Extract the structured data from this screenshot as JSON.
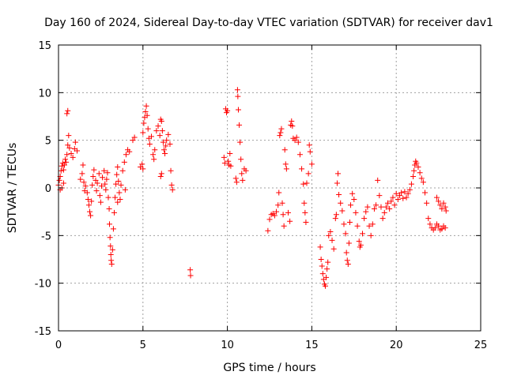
{
  "chart_data": {
    "type": "scatter",
    "title": "Day 160 of 2024, Sidereal Day-to-day VTEC variation (SDTVAR) for receiver dav1",
    "xlabel": "GPS time / hours",
    "ylabel": "SDTVAR / TECUs",
    "xlim": [
      0,
      25
    ],
    "ylim": [
      -15,
      15
    ],
    "x_ticks": [
      0,
      5,
      10,
      15,
      20,
      25
    ],
    "y_ticks": [
      -15,
      -10,
      -5,
      0,
      5,
      10,
      15
    ],
    "x_tick_labels": [
      "0",
      "5",
      "10",
      "15",
      "20",
      "25"
    ],
    "y_tick_labels": [
      "-15",
      "-10",
      "-5",
      "0",
      "5",
      "10",
      "15"
    ],
    "grid": true,
    "marker": "+",
    "marker_color": "#ff0000",
    "series": [
      {
        "name": "SDTVAR",
        "points": [
          [
            0.0,
            0.3
          ],
          [
            0.05,
            0.8
          ],
          [
            0.1,
            1.2
          ],
          [
            0.15,
            1.8
          ],
          [
            0.2,
            2.3
          ],
          [
            0.25,
            2.6
          ],
          [
            0.3,
            1.9
          ],
          [
            0.35,
            2.4
          ],
          [
            0.4,
            3.0
          ],
          [
            0.45,
            2.7
          ],
          [
            0.5,
            3.5
          ],
          [
            0.55,
            4.5
          ],
          [
            0.5,
            7.8
          ],
          [
            0.55,
            8.1
          ],
          [
            0.6,
            5.5
          ],
          [
            0.65,
            4.2
          ],
          [
            0.75,
            3.6
          ],
          [
            0.85,
            3.2
          ],
          [
            0.95,
            4.1
          ],
          [
            1.0,
            4.8
          ],
          [
            1.1,
            3.9
          ],
          [
            0.1,
            -0.2
          ],
          [
            0.2,
            0.0
          ],
          [
            0.3,
            0.5
          ],
          [
            1.3,
            0.9
          ],
          [
            1.4,
            1.5
          ],
          [
            1.45,
            2.4
          ],
          [
            1.5,
            0.6
          ],
          [
            1.55,
            -0.3
          ],
          [
            1.6,
            0.2
          ],
          [
            1.7,
            -0.5
          ],
          [
            1.75,
            -1.2
          ],
          [
            1.8,
            -1.8
          ],
          [
            1.85,
            -2.5
          ],
          [
            1.9,
            -2.9
          ],
          [
            1.95,
            -1.4
          ],
          [
            2.0,
            0.3
          ],
          [
            2.05,
            1.2
          ],
          [
            2.1,
            1.9
          ],
          [
            2.2,
            0.8
          ],
          [
            2.25,
            -0.3
          ],
          [
            2.3,
            0.5
          ],
          [
            2.4,
            1.5
          ],
          [
            2.45,
            -0.8
          ],
          [
            2.5,
            -1.5
          ],
          [
            2.55,
            0.2
          ],
          [
            2.6,
            1.1
          ],
          [
            2.7,
            1.8
          ],
          [
            2.75,
            0.4
          ],
          [
            2.8,
            -0.2
          ],
          [
            2.85,
            0.9
          ],
          [
            2.9,
            1.6
          ],
          [
            2.95,
            -1.0
          ],
          [
            3.0,
            -2.2
          ],
          [
            3.02,
            -3.8
          ],
          [
            3.05,
            -5.2
          ],
          [
            3.08,
            -6.1
          ],
          [
            3.1,
            -7.0
          ],
          [
            3.12,
            -7.6
          ],
          [
            3.15,
            -8.0
          ],
          [
            3.2,
            -6.5
          ],
          [
            3.25,
            -4.3
          ],
          [
            3.3,
            -2.6
          ],
          [
            3.35,
            -1.0
          ],
          [
            3.4,
            0.4
          ],
          [
            3.45,
            1.4
          ],
          [
            3.5,
            2.2
          ],
          [
            3.55,
            0.7
          ],
          [
            3.6,
            -0.5
          ],
          [
            3.65,
            -1.2
          ],
          [
            3.7,
            0.3
          ],
          [
            3.8,
            1.8
          ],
          [
            3.9,
            2.7
          ],
          [
            4.0,
            3.5
          ],
          [
            4.1,
            4.0
          ],
          [
            4.2,
            3.8
          ],
          [
            3.95,
            -0.2
          ],
          [
            3.5,
            -1.5
          ],
          [
            4.4,
            5.0
          ],
          [
            4.5,
            5.3
          ],
          [
            4.85,
            2.2
          ],
          [
            4.95,
            2.5
          ],
          [
            5.0,
            5.8
          ],
          [
            5.05,
            6.8
          ],
          [
            5.1,
            7.4
          ],
          [
            5.15,
            8.0
          ],
          [
            5.2,
            8.6
          ],
          [
            5.25,
            7.6
          ],
          [
            5.3,
            6.2
          ],
          [
            5.35,
            5.2
          ],
          [
            5.4,
            4.6
          ],
          [
            5.5,
            5.4
          ],
          [
            5.6,
            3.5
          ],
          [
            5.65,
            3.0
          ],
          [
            5.7,
            4.0
          ],
          [
            5.8,
            6.0
          ],
          [
            5.9,
            6.5
          ],
          [
            6.0,
            5.5
          ],
          [
            6.05,
            7.2
          ],
          [
            6.1,
            7.0
          ],
          [
            6.15,
            6.0
          ],
          [
            6.2,
            4.8
          ],
          [
            6.25,
            4.0
          ],
          [
            6.3,
            3.6
          ],
          [
            6.35,
            4.4
          ],
          [
            6.4,
            5.0
          ],
          [
            6.5,
            5.6
          ],
          [
            6.6,
            4.6
          ],
          [
            6.65,
            1.8
          ],
          [
            6.7,
            0.3
          ],
          [
            6.75,
            -0.2
          ],
          [
            6.1,
            1.5
          ],
          [
            6.05,
            1.2
          ],
          [
            5.0,
            2.0
          ],
          [
            7.8,
            -8.6
          ],
          [
            7.82,
            -9.2
          ],
          [
            9.8,
            3.2
          ],
          [
            9.85,
            2.6
          ],
          [
            9.9,
            8.3
          ],
          [
            9.95,
            7.9
          ],
          [
            10.0,
            8.1
          ],
          [
            10.05,
            2.8
          ],
          [
            10.1,
            2.4
          ],
          [
            10.15,
            3.6
          ],
          [
            10.2,
            2.3
          ],
          [
            10.5,
            1.0
          ],
          [
            10.55,
            0.6
          ],
          [
            10.6,
            10.3
          ],
          [
            10.62,
            9.6
          ],
          [
            10.65,
            8.2
          ],
          [
            10.7,
            6.6
          ],
          [
            10.75,
            4.8
          ],
          [
            10.8,
            3.0
          ],
          [
            10.85,
            1.5
          ],
          [
            10.9,
            0.8
          ],
          [
            11.0,
            2.0
          ],
          [
            11.1,
            1.8
          ],
          [
            12.4,
            -4.5
          ],
          [
            12.5,
            -3.3
          ],
          [
            12.6,
            -2.8
          ],
          [
            12.7,
            -2.7
          ],
          [
            12.8,
            -2.9
          ],
          [
            12.9,
            -2.5
          ],
          [
            13.0,
            -1.8
          ],
          [
            13.05,
            -0.5
          ],
          [
            13.1,
            5.5
          ],
          [
            13.15,
            5.8
          ],
          [
            13.2,
            6.2
          ],
          [
            13.25,
            -1.6
          ],
          [
            13.3,
            -2.8
          ],
          [
            13.35,
            -4.0
          ],
          [
            13.4,
            4.0
          ],
          [
            13.45,
            2.5
          ],
          [
            13.5,
            2.0
          ],
          [
            13.6,
            -2.6
          ],
          [
            13.7,
            -3.5
          ],
          [
            13.75,
            6.6
          ],
          [
            13.8,
            7.0
          ],
          [
            13.85,
            6.5
          ],
          [
            13.9,
            5.2
          ],
          [
            14.0,
            5.0
          ],
          [
            14.1,
            5.3
          ],
          [
            14.2,
            4.8
          ],
          [
            14.3,
            3.5
          ],
          [
            14.4,
            2.0
          ],
          [
            14.5,
            0.4
          ],
          [
            14.55,
            -1.6
          ],
          [
            14.6,
            -2.6
          ],
          [
            14.65,
            -3.6
          ],
          [
            14.7,
            0.5
          ],
          [
            14.8,
            1.5
          ],
          [
            14.85,
            4.5
          ],
          [
            14.9,
            3.8
          ],
          [
            15.0,
            2.5
          ],
          [
            15.5,
            -6.2
          ],
          [
            15.55,
            -7.5
          ],
          [
            15.6,
            -8.2
          ],
          [
            15.65,
            -9.0
          ],
          [
            15.7,
            -9.6
          ],
          [
            15.75,
            -10.1
          ],
          [
            15.8,
            -10.3
          ],
          [
            15.85,
            -9.4
          ],
          [
            15.9,
            -8.5
          ],
          [
            15.95,
            -7.8
          ],
          [
            16.0,
            -5.0
          ],
          [
            16.1,
            -4.6
          ],
          [
            16.2,
            -5.5
          ],
          [
            16.3,
            -6.4
          ],
          [
            16.4,
            -3.2
          ],
          [
            16.45,
            -2.8
          ],
          [
            16.5,
            0.5
          ],
          [
            16.55,
            1.5
          ],
          [
            16.6,
            -0.7
          ],
          [
            16.7,
            -1.6
          ],
          [
            16.8,
            -2.4
          ],
          [
            16.9,
            -3.8
          ],
          [
            17.0,
            -4.8
          ],
          [
            17.05,
            -6.8
          ],
          [
            17.1,
            -7.6
          ],
          [
            17.15,
            -8.0
          ],
          [
            17.2,
            -5.8
          ],
          [
            17.25,
            -3.6
          ],
          [
            17.3,
            -1.8
          ],
          [
            17.4,
            -0.6
          ],
          [
            17.5,
            -1.2
          ],
          [
            17.6,
            -2.6
          ],
          [
            17.7,
            -4.0
          ],
          [
            17.8,
            -5.6
          ],
          [
            17.85,
            -6.2
          ],
          [
            17.9,
            -6.0
          ],
          [
            18.0,
            -4.8
          ],
          [
            18.1,
            -3.2
          ],
          [
            18.2,
            -2.5
          ],
          [
            18.3,
            -2.0
          ],
          [
            18.4,
            -4.0
          ],
          [
            18.5,
            -5.0
          ],
          [
            18.6,
            -3.8
          ],
          [
            18.7,
            -2.2
          ],
          [
            18.8,
            -1.8
          ],
          [
            18.9,
            0.8
          ],
          [
            19.0,
            -0.8
          ],
          [
            19.1,
            -2.0
          ],
          [
            19.2,
            -3.2
          ],
          [
            19.3,
            -2.6
          ],
          [
            19.4,
            -2.0
          ],
          [
            19.5,
            -1.6
          ],
          [
            19.6,
            -2.2
          ],
          [
            19.7,
            -1.4
          ],
          [
            19.8,
            -1.0
          ],
          [
            19.9,
            -1.8
          ],
          [
            20.0,
            -0.6
          ],
          [
            20.1,
            -1.2
          ],
          [
            20.2,
            -0.8
          ],
          [
            20.3,
            -0.5
          ],
          [
            20.4,
            -1.1
          ],
          [
            20.5,
            -0.4
          ],
          [
            20.6,
            -1.0
          ],
          [
            20.7,
            -0.6
          ],
          [
            20.8,
            -0.2
          ],
          [
            20.9,
            0.4
          ],
          [
            21.0,
            1.2
          ],
          [
            21.05,
            1.8
          ],
          [
            21.1,
            2.4
          ],
          [
            21.15,
            2.8
          ],
          [
            21.2,
            2.6
          ],
          [
            21.3,
            2.2
          ],
          [
            21.4,
            1.6
          ],
          [
            21.5,
            1.0
          ],
          [
            21.6,
            0.6
          ],
          [
            21.7,
            -0.5
          ],
          [
            21.8,
            -1.6
          ],
          [
            21.9,
            -3.2
          ],
          [
            22.0,
            -3.8
          ],
          [
            22.1,
            -4.2
          ],
          [
            22.2,
            -4.4
          ],
          [
            22.3,
            -4.2
          ],
          [
            22.4,
            -3.8
          ],
          [
            22.5,
            -4.0
          ],
          [
            22.6,
            -4.4
          ],
          [
            22.7,
            -4.3
          ],
          [
            22.8,
            -4.0
          ],
          [
            22.9,
            -4.2
          ],
          [
            22.4,
            -1.0
          ],
          [
            22.5,
            -1.4
          ],
          [
            22.6,
            -1.8
          ],
          [
            22.7,
            -2.2
          ],
          [
            22.8,
            -1.6
          ],
          [
            22.9,
            -2.0
          ],
          [
            22.95,
            -2.4
          ]
        ]
      }
    ]
  }
}
